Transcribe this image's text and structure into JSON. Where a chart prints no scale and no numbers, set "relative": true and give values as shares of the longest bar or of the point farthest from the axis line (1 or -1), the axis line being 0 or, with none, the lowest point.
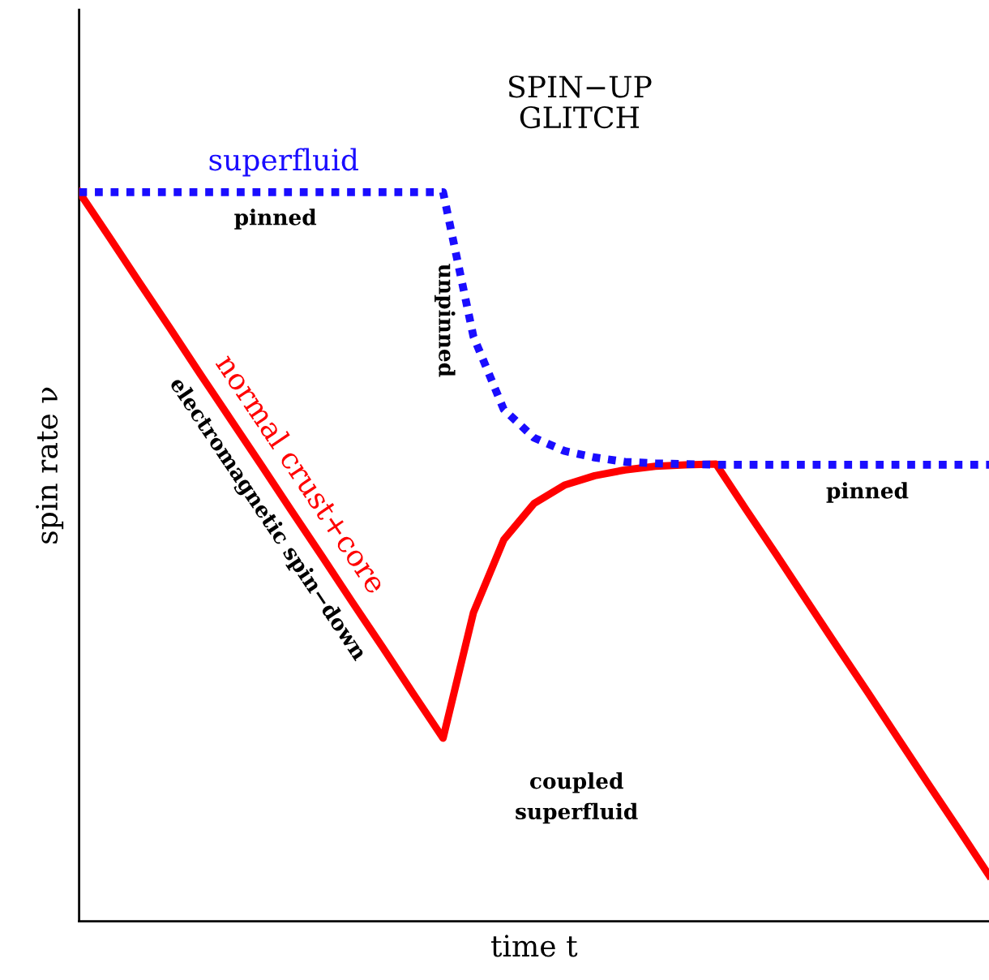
{
  "chart_data": {
    "type": "line",
    "relative": true,
    "xlabel": "time t",
    "ylabel": "spin rate ν",
    "categories": [
      null,
      null,
      null,
      null,
      null,
      null,
      null,
      null,
      null,
      null,
      null,
      null,
      null,
      null,
      null,
      null,
      null,
      null,
      null,
      null,
      null,
      null,
      null,
      null,
      null,
      null,
      null,
      null,
      null,
      null,
      null
    ],
    "series": [
      {
        "name": "superfluid",
        "color": "#1a0dff",
        "line_style": "dotted",
        "values": [
          1,
          1,
          1,
          1,
          1,
          1,
          1,
          1,
          1,
          1,
          1,
          1,
          1,
          0.802,
          0.702,
          0.663,
          0.645,
          0.636,
          0.63,
          0.628,
          0.627,
          0.626,
          0.626,
          0.626,
          0.626,
          0.626,
          0.626,
          0.626,
          0.626,
          0.626,
          0.626
        ]
      },
      {
        "name": "normal crust+core",
        "color": "#ff0000",
        "line_style": "solid",
        "values": [
          1,
          0.938,
          0.875,
          0.813,
          0.75,
          0.688,
          0.626,
          0.563,
          0.501,
          0.438,
          0.376,
          0.313,
          0.251,
          0.423,
          0.523,
          0.573,
          0.598,
          0.611,
          0.619,
          0.624,
          0.626,
          0.627,
          0.564,
          0.502,
          0.439,
          0.376,
          0.314,
          0.251,
          0.188,
          0.126,
          0.063
        ]
      }
    ],
    "annotations": [
      "SPIN−UP\nGLITCH",
      "pinned",
      "unpinned",
      "electromagnetic spin−down",
      "pinned",
      "coupled\nsuperfluid"
    ]
  }
}
